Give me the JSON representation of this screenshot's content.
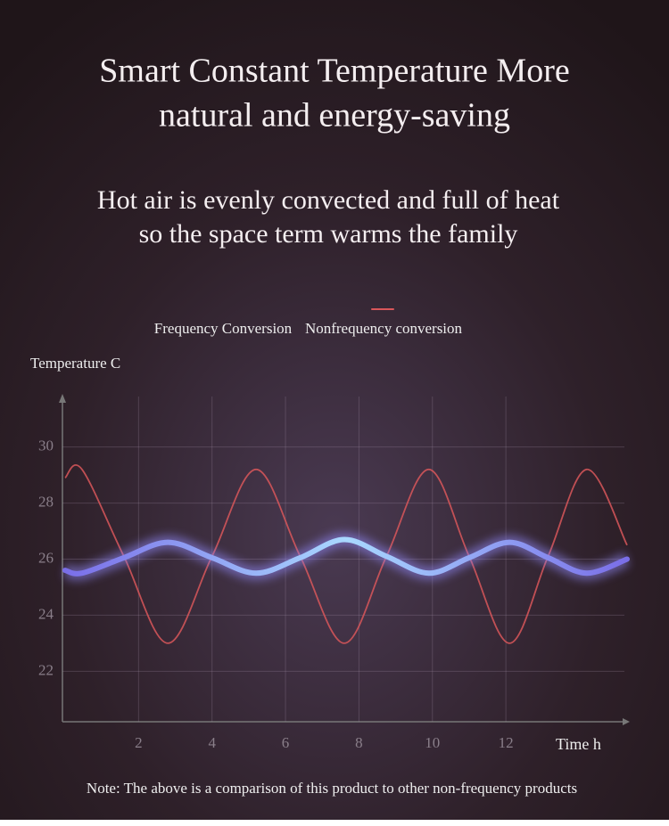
{
  "chart_data": {
    "type": "line",
    "title": [
      "Smart Constant Temperature More",
      "natural and energy-saving"
    ],
    "subtitle": [
      "Hot air is evenly convected and full of heat",
      "so the space term warms the family"
    ],
    "y_label": "Temperature C",
    "x_label": "Time h",
    "note": "Note: The above is a comparison of this product to other non-frequency products",
    "x": [
      0,
      0.46,
      1.6,
      2.8,
      4.0,
      5.2,
      6.4,
      7.6,
      8.75,
      9.9,
      11.0,
      12.1,
      13.15,
      14.2,
      15.3
    ],
    "series": [
      {
        "name": "Frequency Conversion",
        "color": "#8f86f5",
        "values": [
          25.6,
          25.5,
          26.05,
          26.6,
          26.05,
          25.5,
          26.05,
          26.7,
          26.1,
          25.5,
          26.05,
          26.6,
          26.05,
          25.5,
          26.0
        ]
      },
      {
        "name": "Nonfrequency conversion",
        "color": "#d9575a",
        "values": [
          28.9,
          29.2,
          26.1,
          23.0,
          26.1,
          29.2,
          26.1,
          23.0,
          26.1,
          29.2,
          26.1,
          23.0,
          26.1,
          29.2,
          26.5
        ]
      }
    ],
    "xlim": [
      0,
      15.3
    ],
    "ylim": [
      20.2,
      31.8
    ],
    "xticks": [
      2,
      4,
      6,
      8,
      10,
      12
    ],
    "yticks": [
      22,
      24,
      26,
      28,
      30
    ],
    "grid": true
  }
}
